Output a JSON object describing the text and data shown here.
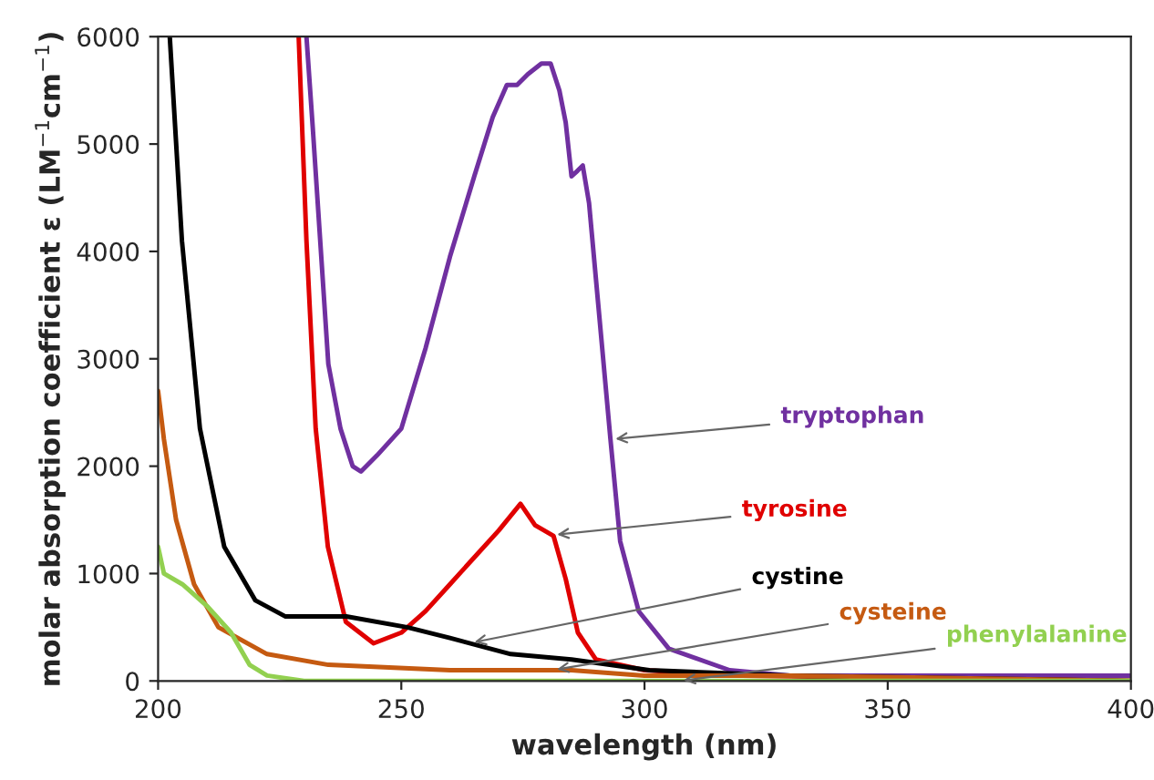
{
  "chart_data": {
    "type": "line",
    "xlabel": "wavelength (nm)",
    "ylabel": "molar absorption coefficient ε (LM$^{−1}$cm$^{−1}$)",
    "xlim": [
      200,
      400
    ],
    "ylim": [
      0,
      6000
    ],
    "xticks": [
      200,
      250,
      300,
      350,
      400
    ],
    "yticks": [
      0,
      1000,
      2000,
      3000,
      4000,
      5000,
      6000
    ],
    "grid": false,
    "legend": false,
    "marker": "none",
    "line_style": "solid",
    "series": [
      {
        "name": "tryptophan",
        "color": "#7030a0",
        "x": [
          230.5,
          231.8,
          235,
          237.5,
          240,
          241.7,
          245,
          250,
          255,
          260,
          265,
          268.8,
          271.7,
          273.8,
          276,
          278.8,
          280.7,
          282.5,
          283.8,
          285,
          286.2,
          287.3,
          288.6,
          290.5,
          293,
          295,
          298.8,
          305,
          317.5,
          330,
          350,
          400
        ],
        "values": [
          6000,
          5150,
          2950,
          2350,
          2000,
          1950,
          2100,
          2350,
          3100,
          3950,
          4700,
          5250,
          5550,
          5550,
          5650,
          5750,
          5750,
          5500,
          5200,
          4700,
          4750,
          4800,
          4450,
          3500,
          2250,
          1300,
          650,
          300,
          100,
          50,
          50,
          50
        ]
      },
      {
        "name": "tyrosine",
        "color": "#e00000",
        "x": [
          228.9,
          230.5,
          232.4,
          234.9,
          238.6,
          244.3,
          250,
          255,
          260,
          265,
          270,
          274.5,
          277.5,
          281.3,
          283.8,
          286.3,
          290,
          300,
          320,
          400
        ],
        "values": [
          6000,
          4100,
          2350,
          1250,
          550,
          350,
          450,
          650,
          900,
          1150,
          1400,
          1650,
          1450,
          1350,
          950,
          450,
          200,
          100,
          50,
          0
        ]
      },
      {
        "name": "cystine",
        "color": "#000000",
        "x": [
          202.4,
          204.9,
          208.6,
          213.6,
          220,
          226.2,
          238.7,
          251.2,
          260,
          272.5,
          285,
          301,
          330,
          400
        ],
        "values": [
          6000,
          4100,
          2350,
          1250,
          750,
          600,
          600,
          500,
          400,
          250,
          200,
          100,
          50,
          0
        ]
      },
      {
        "name": "cysteine",
        "color": "#c55a11",
        "x": [
          200,
          201.2,
          203.7,
          207.4,
          212.4,
          222.4,
          235,
          260,
          285,
          300,
          330,
          400
        ],
        "values": [
          2700,
          2250,
          1500,
          900,
          500,
          250,
          150,
          100,
          100,
          50,
          50,
          0
        ]
      },
      {
        "name": "phenylalanine",
        "color": "#92d050",
        "x": [
          200,
          201.2,
          205,
          210,
          215,
          218.8,
          222.4,
          230,
          300,
          400
        ],
        "values": [
          1250,
          1000,
          900,
          700,
          450,
          150,
          50,
          0,
          0,
          0
        ]
      }
    ]
  }
}
